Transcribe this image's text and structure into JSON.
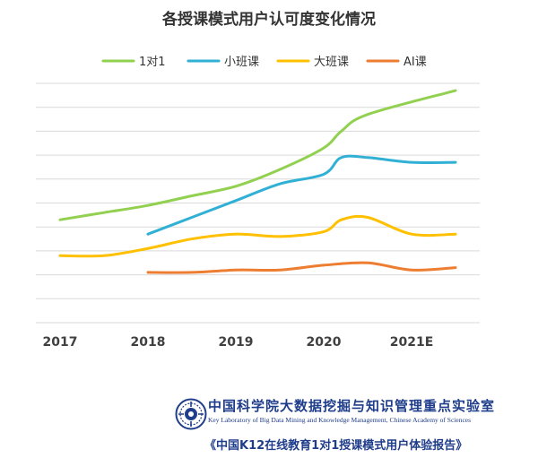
{
  "chart_data": {
    "type": "line",
    "title": "各授课模式用户认可度变化情况",
    "categories": [
      "2017",
      "2018",
      "2019",
      "2020",
      "2021E"
    ],
    "ylim": [
      0,
      100
    ],
    "grid": true,
    "legend_position": "top",
    "series": [
      {
        "name": "1对1",
        "color": "#92d050",
        "x": [
          2017,
          2017.5,
          2018,
          2018.5,
          2019,
          2019.5,
          2020,
          2020.2,
          2020.5,
          2021.5
        ],
        "y": [
          43,
          46,
          49,
          53,
          57,
          64,
          73,
          80,
          87,
          97
        ]
      },
      {
        "name": "小班课",
        "color": "#31b0d5",
        "x": [
          2018,
          2018.5,
          2019,
          2019.5,
          2020,
          2020.2,
          2020.5,
          2021,
          2021.5
        ],
        "y": [
          37,
          44,
          51,
          58,
          62,
          69,
          69,
          67,
          67
        ]
      },
      {
        "name": "大班课",
        "color": "#ffc000",
        "x": [
          2017,
          2017.5,
          2018,
          2018.5,
          2019,
          2019.5,
          2020,
          2020.2,
          2020.5,
          2021,
          2021.5
        ],
        "y": [
          28,
          28,
          31,
          35,
          37,
          36,
          38,
          43,
          44,
          37,
          37
        ]
      },
      {
        "name": "AI课",
        "color": "#ed7d31",
        "x": [
          2018,
          2018.5,
          2019,
          2019.5,
          2020,
          2020.5,
          2021,
          2021.5
        ],
        "y": [
          21,
          21,
          22,
          22,
          24,
          25,
          22,
          23
        ]
      }
    ]
  },
  "footer": {
    "org_cn": "中国科学院大数据挖掘与知识管理重点实验室",
    "org_en": "Key Laboratory of Big Data Mining and Knowledge Management, Chinese Academy of Sciences",
    "report_title": "《中国K12在线教育1对1授课模式用户体验报告》"
  }
}
